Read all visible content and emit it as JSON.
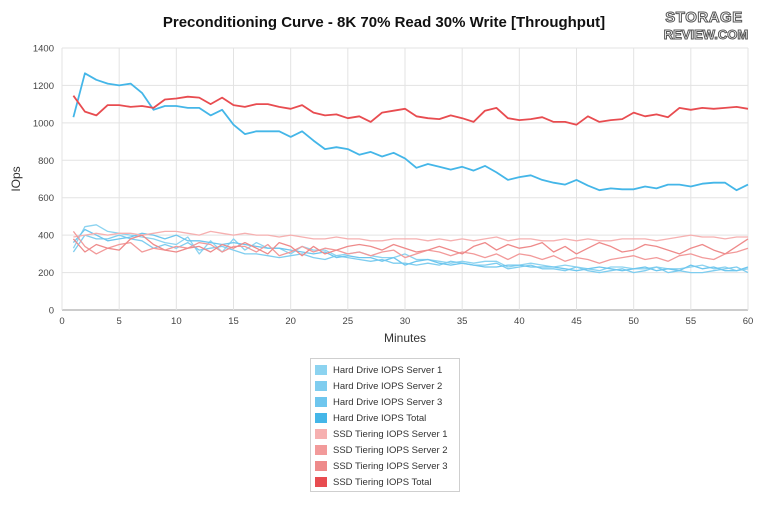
{
  "brand": {
    "logo_line1": "STORAGE",
    "logo_line2": "REVIEW.COM"
  },
  "chart_data": {
    "type": "line",
    "title": "Preconditioning Curve - 8K 70% Read 30% Write [Throughput]",
    "xlabel": "Minutes",
    "ylabel": "IOps",
    "xlim": [
      0,
      60
    ],
    "ylim": [
      0,
      1400
    ],
    "xticks": [
      0,
      5,
      10,
      15,
      20,
      25,
      30,
      35,
      40,
      45,
      50,
      55,
      60
    ],
    "yticks": [
      0,
      200,
      400,
      600,
      800,
      1000,
      1200,
      1400
    ],
    "grid": true,
    "legend_position": "bottom-center",
    "x": [
      1,
      2,
      3,
      4,
      5,
      6,
      7,
      8,
      9,
      10,
      11,
      12,
      13,
      14,
      15,
      16,
      17,
      18,
      19,
      20,
      21,
      22,
      23,
      24,
      25,
      26,
      27,
      28,
      29,
      30,
      31,
      32,
      33,
      34,
      35,
      36,
      37,
      38,
      39,
      40,
      41,
      42,
      43,
      44,
      45,
      46,
      47,
      48,
      49,
      50,
      51,
      52,
      53,
      54,
      55,
      56,
      57,
      58,
      59,
      60
    ],
    "series": [
      {
        "name": "Hard Drive IOPS Server 1",
        "color": "#8cd3f0",
        "width": 1.3,
        "values": [
          330,
          445,
          455,
          420,
          410,
          400,
          390,
          380,
          360,
          350,
          390,
          300,
          370,
          310,
          380,
          320,
          360,
          330,
          330,
          300,
          340,
          320,
          320,
          290,
          300,
          310,
          290,
          280,
          280,
          300,
          270,
          270,
          260,
          250,
          260,
          250,
          260,
          260,
          230,
          240,
          250,
          240,
          230,
          240,
          230,
          220,
          210,
          230,
          230,
          220,
          220,
          230,
          220,
          220,
          230,
          240,
          220,
          230,
          210,
          220
        ]
      },
      {
        "name": "Hard Drive IOPS Server 2",
        "color": "#7fcdef",
        "width": 1.3,
        "values": [
          310,
          400,
          380,
          380,
          400,
          380,
          370,
          330,
          350,
          330,
          360,
          320,
          330,
          340,
          320,
          300,
          300,
          290,
          280,
          290,
          300,
          280,
          270,
          290,
          280,
          270,
          260,
          270,
          250,
          250,
          240,
          250,
          240,
          260,
          250,
          240,
          240,
          250,
          220,
          230,
          240,
          220,
          220,
          210,
          230,
          210,
          200,
          210,
          220,
          200,
          210,
          230,
          200,
          210,
          200,
          200,
          210,
          220,
          230,
          200
        ]
      },
      {
        "name": "Hard Drive IOPS Server 3",
        "color": "#6ec6ee",
        "width": 1.3,
        "values": [
          360,
          430,
          400,
          370,
          380,
          390,
          410,
          400,
          380,
          400,
          370,
          370,
          360,
          350,
          360,
          350,
          340,
          330,
          330,
          320,
          310,
          300,
          310,
          280,
          290,
          280,
          280,
          260,
          280,
          240,
          260,
          270,
          250,
          240,
          250,
          240,
          230,
          230,
          240,
          240,
          230,
          230,
          230,
          220,
          210,
          220,
          230,
          220,
          210,
          220,
          230,
          210,
          220,
          210,
          240,
          220,
          230,
          210,
          210,
          230
        ]
      },
      {
        "name": "Hard Drive IOPS Total",
        "color": "#44b6e8",
        "width": 1.8,
        "values": [
          1030,
          1265,
          1230,
          1210,
          1200,
          1210,
          1160,
          1070,
          1090,
          1090,
          1080,
          1080,
          1040,
          1070,
          990,
          940,
          955,
          955,
          955,
          925,
          955,
          905,
          860,
          870,
          860,
          830,
          845,
          820,
          840,
          810,
          760,
          780,
          765,
          750,
          765,
          745,
          770,
          735,
          695,
          710,
          720,
          695,
          680,
          670,
          695,
          665,
          640,
          650,
          645,
          645,
          660,
          650,
          670,
          670,
          660,
          675,
          680,
          680,
          640,
          670
        ]
      },
      {
        "name": "SSD Tiering IOPS Server 1",
        "color": "#f6b0b0",
        "width": 1.3,
        "values": [
          390,
          400,
          410,
          400,
          410,
          410,
          400,
          410,
          420,
          420,
          410,
          400,
          420,
          410,
          400,
          410,
          400,
          400,
          390,
          400,
          390,
          380,
          380,
          390,
          380,
          380,
          370,
          370,
          380,
          380,
          380,
          370,
          380,
          370,
          380,
          370,
          380,
          390,
          370,
          380,
          380,
          370,
          370,
          380,
          370,
          380,
          370,
          370,
          380,
          380,
          380,
          370,
          380,
          390,
          400,
          390,
          390,
          380,
          390,
          390
        ]
      },
      {
        "name": "SSD Tiering IOPS Server 2",
        "color": "#f29a9a",
        "width": 1.3,
        "values": [
          420,
          340,
          300,
          330,
          350,
          360,
          310,
          330,
          320,
          340,
          330,
          360,
          350,
          310,
          340,
          340,
          310,
          350,
          290,
          310,
          340,
          310,
          330,
          320,
          300,
          310,
          290,
          310,
          320,
          280,
          300,
          320,
          310,
          290,
          310,
          300,
          280,
          300,
          270,
          300,
          290,
          270,
          290,
          260,
          280,
          270,
          250,
          270,
          280,
          290,
          270,
          280,
          260,
          290,
          300,
          280,
          270,
          300,
          310,
          330
        ]
      },
      {
        "name": "SSD Tiering IOPS Server 3",
        "color": "#ee8a8a",
        "width": 1.3,
        "values": [
          380,
          310,
          350,
          330,
          320,
          380,
          400,
          350,
          320,
          310,
          330,
          340,
          310,
          350,
          330,
          360,
          330,
          300,
          360,
          340,
          290,
          340,
          300,
          320,
          340,
          350,
          340,
          320,
          350,
          330,
          310,
          320,
          340,
          320,
          300,
          340,
          360,
          320,
          350,
          330,
          340,
          360,
          310,
          340,
          300,
          330,
          360,
          340,
          310,
          320,
          350,
          340,
          320,
          300,
          330,
          350,
          320,
          300,
          340,
          380
        ]
      },
      {
        "name": "SSD Tiering IOPS Total",
        "color": "#e84c50",
        "width": 1.8,
        "values": [
          1145,
          1060,
          1040,
          1095,
          1095,
          1085,
          1090,
          1080,
          1125,
          1130,
          1140,
          1135,
          1100,
          1135,
          1095,
          1085,
          1100,
          1100,
          1085,
          1075,
          1095,
          1055,
          1040,
          1045,
          1025,
          1035,
          1005,
          1055,
          1065,
          1075,
          1035,
          1025,
          1020,
          1040,
          1025,
          1005,
          1065,
          1080,
          1025,
          1015,
          1020,
          1030,
          1005,
          1005,
          990,
          1035,
          1005,
          1015,
          1020,
          1055,
          1035,
          1045,
          1030,
          1080,
          1070,
          1080,
          1075,
          1080,
          1085,
          1075
        ]
      }
    ]
  }
}
